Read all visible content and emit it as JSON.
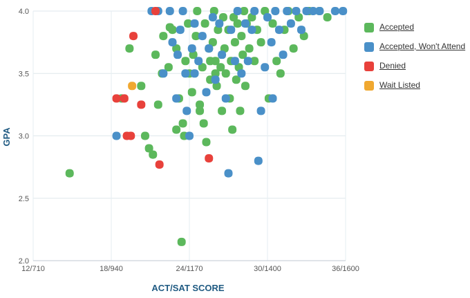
{
  "chart_data": {
    "type": "scatter",
    "xlabel": "ACT/SAT SCORE",
    "ylabel": "GPA",
    "xlim": [
      12,
      36
    ],
    "ylim": [
      2.0,
      4.0
    ],
    "x_ticks": [
      {
        "value": 12,
        "label": "12/710"
      },
      {
        "value": 18,
        "label": "18/940"
      },
      {
        "value": 24,
        "label": "24/1170"
      },
      {
        "value": 30,
        "label": "30/1400"
      },
      {
        "value": 36,
        "label": "36/1600"
      }
    ],
    "y_ticks": [
      {
        "value": 2.0,
        "label": "2.0"
      },
      {
        "value": 2.5,
        "label": "2.5"
      },
      {
        "value": 3.0,
        "label": "3.0"
      },
      {
        "value": 3.5,
        "label": "3.5"
      },
      {
        "value": 4.0,
        "label": "4.0"
      }
    ],
    "grid": true,
    "legend_position": "right",
    "series": [
      {
        "name": "Accepted",
        "color": "#5cb85c",
        "points": [
          [
            14.8,
            2.7
          ],
          [
            18.8,
            3.3
          ],
          [
            19.4,
            3.7
          ],
          [
            20.3,
            3.4
          ],
          [
            20.6,
            3.0
          ],
          [
            20.9,
            2.9
          ],
          [
            21.2,
            2.85
          ],
          [
            21.4,
            3.65
          ],
          [
            21.6,
            3.25
          ],
          [
            21.9,
            3.5
          ],
          [
            22.0,
            3.8
          ],
          [
            22.4,
            3.55
          ],
          [
            22.7,
            3.85
          ],
          [
            23.0,
            3.7
          ],
          [
            23.2,
            3.3
          ],
          [
            23.4,
            2.15
          ],
          [
            23.5,
            3.1
          ],
          [
            23.6,
            3.0
          ],
          [
            23.7,
            3.6
          ],
          [
            23.9,
            3.9
          ],
          [
            24.0,
            3.5
          ],
          [
            24.2,
            3.35
          ],
          [
            24.3,
            3.65
          ],
          [
            24.5,
            3.8
          ],
          [
            24.6,
            4.0
          ],
          [
            24.8,
            3.25
          ],
          [
            25.0,
            3.55
          ],
          [
            25.1,
            3.1
          ],
          [
            25.2,
            3.9
          ],
          [
            25.3,
            2.95
          ],
          [
            25.5,
            3.7
          ],
          [
            25.6,
            3.45
          ],
          [
            25.8,
            3.75
          ],
          [
            25.9,
            4.0
          ],
          [
            26.0,
            3.6
          ],
          [
            26.1,
            3.4
          ],
          [
            26.2,
            3.85
          ],
          [
            26.4,
            3.55
          ],
          [
            26.5,
            3.2
          ],
          [
            26.6,
            3.95
          ],
          [
            26.7,
            3.7
          ],
          [
            26.8,
            3.5
          ],
          [
            27.0,
            3.85
          ],
          [
            27.1,
            3.3
          ],
          [
            27.2,
            3.6
          ],
          [
            27.3,
            3.05
          ],
          [
            27.4,
            3.95
          ],
          [
            27.5,
            3.75
          ],
          [
            27.6,
            3.45
          ],
          [
            27.7,
            3.9
          ],
          [
            27.8,
            3.55
          ],
          [
            27.9,
            3.2
          ],
          [
            28.0,
            3.8
          ],
          [
            28.1,
            3.65
          ],
          [
            28.2,
            4.0
          ],
          [
            28.3,
            3.4
          ],
          [
            28.4,
            3.9
          ],
          [
            28.6,
            3.7
          ],
          [
            28.8,
            3.95
          ],
          [
            29.0,
            3.6
          ],
          [
            29.2,
            3.85
          ],
          [
            29.5,
            3.75
          ],
          [
            29.8,
            4.0
          ],
          [
            30.1,
            3.3
          ],
          [
            30.4,
            3.9
          ],
          [
            30.7,
            3.6
          ],
          [
            31.0,
            3.5
          ],
          [
            31.3,
            3.85
          ],
          [
            31.6,
            4.0
          ],
          [
            32.0,
            3.7
          ],
          [
            32.4,
            3.95
          ],
          [
            32.8,
            3.8
          ],
          [
            33.2,
            4.0
          ],
          [
            34.0,
            4.0
          ],
          [
            34.6,
            3.95
          ],
          [
            23.0,
            3.05
          ],
          [
            24.8,
            3.2
          ],
          [
            26.0,
            3.5
          ],
          [
            22.5,
            3.87
          ],
          [
            25.6,
            3.6
          ]
        ]
      },
      {
        "name": "Accepted, Won't Attend",
        "color": "#4a90c8",
        "points": [
          [
            18.4,
            3.0
          ],
          [
            21.1,
            4.0
          ],
          [
            21.6,
            4.0
          ],
          [
            22.5,
            4.0
          ],
          [
            22.7,
            3.75
          ],
          [
            23.0,
            3.3
          ],
          [
            23.1,
            3.65
          ],
          [
            23.3,
            3.85
          ],
          [
            23.5,
            4.0
          ],
          [
            23.7,
            3.5
          ],
          [
            23.8,
            3.2
          ],
          [
            24.0,
            3.0
          ],
          [
            24.2,
            3.7
          ],
          [
            24.4,
            3.9
          ],
          [
            24.7,
            3.6
          ],
          [
            25.0,
            3.8
          ],
          [
            25.3,
            3.35
          ],
          [
            25.5,
            3.7
          ],
          [
            25.8,
            3.95
          ],
          [
            26.0,
            3.45
          ],
          [
            26.3,
            3.9
          ],
          [
            26.5,
            3.65
          ],
          [
            26.8,
            3.3
          ],
          [
            27.0,
            2.7
          ],
          [
            27.2,
            3.85
          ],
          [
            27.5,
            3.6
          ],
          [
            27.7,
            4.0
          ],
          [
            28.0,
            3.5
          ],
          [
            28.3,
            3.9
          ],
          [
            28.5,
            3.6
          ],
          [
            28.8,
            3.85
          ],
          [
            29.0,
            4.0
          ],
          [
            29.3,
            2.8
          ],
          [
            29.5,
            3.2
          ],
          [
            29.8,
            3.55
          ],
          [
            30.0,
            3.95
          ],
          [
            30.3,
            3.75
          ],
          [
            30.6,
            4.0
          ],
          [
            30.9,
            3.85
          ],
          [
            31.2,
            3.65
          ],
          [
            31.5,
            4.0
          ],
          [
            31.8,
            3.9
          ],
          [
            32.2,
            4.0
          ],
          [
            32.6,
            3.85
          ],
          [
            33.0,
            4.0
          ],
          [
            33.5,
            4.0
          ],
          [
            34.0,
            4.0
          ],
          [
            35.2,
            4.0
          ],
          [
            35.8,
            4.0
          ],
          [
            22.0,
            3.5
          ],
          [
            24.4,
            3.5
          ],
          [
            30.4,
            3.3
          ]
        ]
      },
      {
        "name": "Denied",
        "color": "#e8413b",
        "points": [
          [
            18.4,
            3.3
          ],
          [
            19.0,
            3.3
          ],
          [
            19.2,
            3.0
          ],
          [
            19.5,
            3.0
          ],
          [
            19.7,
            3.8
          ],
          [
            20.3,
            3.25
          ],
          [
            21.4,
            4.0
          ],
          [
            21.7,
            2.77
          ],
          [
            25.5,
            2.82
          ]
        ]
      },
      {
        "name": "Wait Listed",
        "color": "#f0a830",
        "points": [
          [
            19.6,
            3.4
          ]
        ]
      }
    ]
  }
}
